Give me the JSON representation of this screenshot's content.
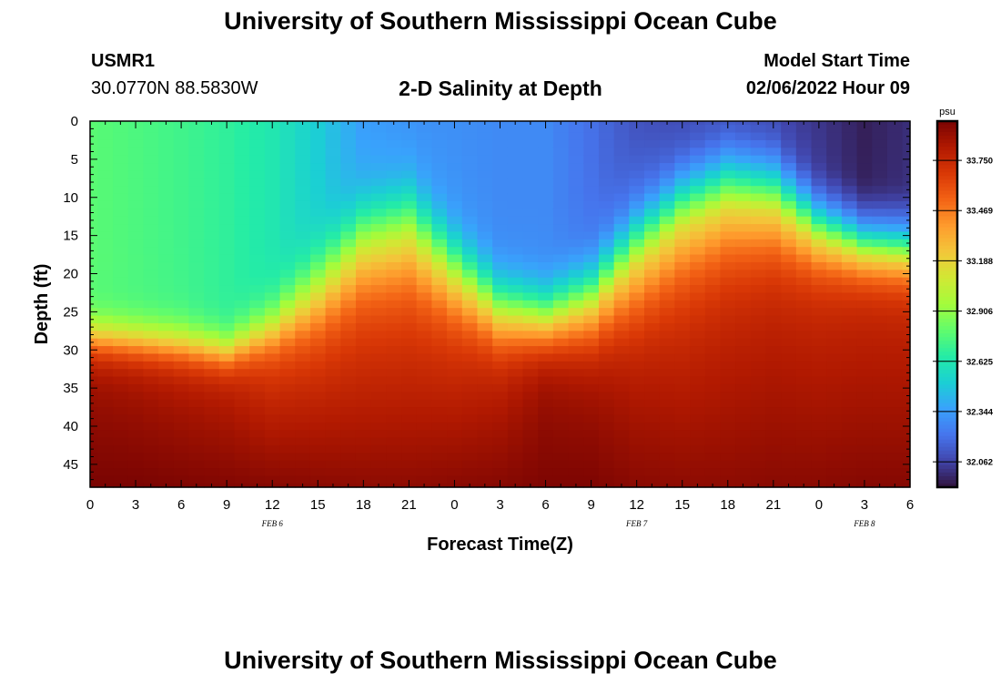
{
  "header": {
    "title": "University of Southern Mississippi Ocean Cube",
    "station_id": "USMR1",
    "coordinates": "30.0770N  88.5830W",
    "subtitle": "2-D Salinity at Depth",
    "model_start_label": "Model Start Time",
    "model_start_value": "02/06/2022 Hour 09"
  },
  "footer": {
    "title": "University of Southern Mississippi Ocean Cube"
  },
  "colors": {
    "palette": [
      "#30123b",
      "#4145ab",
      "#4675ed",
      "#39a2fc",
      "#1bcfd4",
      "#24eca6",
      "#61fc6c",
      "#a4fc3b",
      "#d1e834",
      "#f3c63a",
      "#fe9b2d",
      "#f36315",
      "#d93806",
      "#b11901",
      "#7a0402"
    ]
  },
  "chart_data": {
    "type": "heatmap",
    "title": "2-D Salinity at Depth",
    "xlabel": "Forecast Time(Z)",
    "ylabel": "Depth (ft)",
    "x_unit": "hours since Feb 6 00Z",
    "xlim": [
      0,
      54
    ],
    "ylim": [
      0,
      48
    ],
    "x_ticks": [
      0,
      3,
      6,
      9,
      12,
      15,
      18,
      21,
      24,
      27,
      30,
      33,
      36,
      39,
      42,
      45,
      48,
      51,
      54
    ],
    "x_tick_labels": [
      "0",
      "3",
      "6",
      "9",
      "12",
      "15",
      "18",
      "21",
      "0",
      "3",
      "6",
      "9",
      "12",
      "15",
      "18",
      "21",
      "0",
      "3",
      "6"
    ],
    "y_ticks": [
      0,
      5,
      10,
      15,
      20,
      25,
      30,
      35,
      40,
      45
    ],
    "y_tick_labels": [
      "0",
      "5",
      "10",
      "15",
      "20",
      "25",
      "30",
      "35",
      "40",
      "45"
    ],
    "date_labels": [
      {
        "x": 12,
        "text": "FEB 6"
      },
      {
        "x": 36,
        "text": "FEB 7"
      },
      {
        "x": 51,
        "text": "FEB 8"
      }
    ],
    "colorbar": {
      "unit": "psu",
      "min": 31.92,
      "max": 33.97,
      "ticks": [
        32.062,
        32.344,
        32.625,
        32.906,
        33.188,
        33.469,
        33.75
      ],
      "tick_labels": [
        "32.062",
        "32.344",
        "32.625",
        "32.906",
        "33.188",
        "33.469",
        "33.750"
      ]
    },
    "grid": {
      "nx": 55,
      "ny": 49,
      "x_step": 1,
      "y_step": 1
    },
    "time_series": {
      "x": [
        0,
        3,
        6,
        9,
        12,
        15,
        18,
        21,
        24,
        27,
        30,
        33,
        36,
        39,
        42,
        45,
        48,
        51,
        54
      ],
      "surface_salinity": [
        32.78,
        32.75,
        32.72,
        32.68,
        32.62,
        32.5,
        32.34,
        32.3,
        32.3,
        32.28,
        32.28,
        32.2,
        32.1,
        32.05,
        32.05,
        32.05,
        32.02,
        31.96,
        32.0
      ],
      "halocline_depth_ft": [
        28,
        28.5,
        29,
        30,
        27,
        22.5,
        17,
        15.5,
        21,
        26,
        27,
        25,
        19,
        14,
        11.5,
        12,
        16,
        18,
        18.5
      ],
      "halocline_width_ft": [
        3.5,
        3.5,
        3.5,
        3.2,
        4,
        6,
        7,
        7.5,
        6,
        5,
        4.5,
        6,
        8,
        8,
        8,
        7,
        5,
        4,
        4
      ],
      "deep_salinity": [
        33.85,
        33.82,
        33.78,
        33.75,
        33.62,
        33.6,
        33.58,
        33.58,
        33.62,
        33.72,
        33.85,
        33.82,
        33.72,
        33.65,
        33.68,
        33.7,
        33.7,
        33.72,
        33.72
      ],
      "bottom_salinity": [
        33.97,
        33.97,
        33.96,
        33.95,
        33.94,
        33.93,
        33.92,
        33.92,
        33.93,
        33.94,
        33.96,
        33.96,
        33.93,
        33.92,
        33.92,
        33.93,
        33.93,
        33.94,
        33.94
      ]
    }
  }
}
